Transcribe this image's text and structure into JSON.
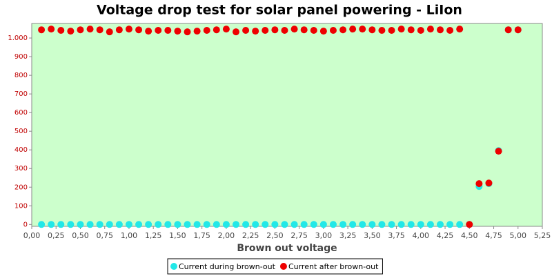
{
  "chart_data": {
    "type": "scatter",
    "title": "Voltage drop test for solar panel powering -  LiIon",
    "x_label": "Brown out voltage",
    "x": [
      0.1,
      0.2,
      0.3,
      0.4,
      0.5,
      0.6,
      0.7,
      0.8,
      0.9,
      1.0,
      1.1,
      1.2,
      1.3,
      1.4,
      1.5,
      1.6,
      1.7,
      1.8,
      1.9,
      2.0,
      2.1,
      2.2,
      2.3,
      2.4,
      2.5,
      2.6,
      2.7,
      2.8,
      2.9,
      3.0,
      3.1,
      3.2,
      3.3,
      3.4,
      3.5,
      3.6,
      3.7,
      3.8,
      3.9,
      4.0,
      4.1,
      4.2,
      4.3,
      4.4,
      4.5,
      4.6,
      4.7,
      4.8,
      4.9,
      5.0
    ],
    "series": [
      {
        "name": "Current during brown-out",
        "color": "#22e8e8",
        "values": [
          0,
          0,
          0,
          0,
          0,
          0,
          0,
          0,
          0,
          0,
          0,
          0,
          0,
          0,
          0,
          0,
          0,
          0,
          0,
          0,
          0,
          0,
          0,
          0,
          0,
          0,
          0,
          0,
          0,
          0,
          0,
          0,
          0,
          0,
          0,
          0,
          0,
          0,
          0,
          0,
          0,
          0,
          0,
          0,
          0,
          204,
          219,
          396,
          1044,
          1044
        ]
      },
      {
        "name": "Current after brown-out",
        "color": "#ee0000",
        "values": [
          1044,
          1048,
          1041,
          1037,
          1044,
          1048,
          1044,
          1033,
          1044,
          1048,
          1044,
          1037,
          1041,
          1041,
          1037,
          1033,
          1037,
          1041,
          1044,
          1048,
          1033,
          1041,
          1037,
          1041,
          1044,
          1041,
          1048,
          1044,
          1041,
          1037,
          1041,
          1044,
          1048,
          1048,
          1044,
          1041,
          1041,
          1048,
          1044,
          1041,
          1048,
          1044,
          1041,
          1048,
          0,
          219,
          222,
          393,
          1044,
          1044
        ]
      }
    ],
    "xlim": [
      0,
      5.25
    ],
    "xticks": [
      {
        "value": 0,
        "label": "0,00"
      },
      {
        "value": 0.25,
        "label": "0,25"
      },
      {
        "value": 0.5,
        "label": "0,50"
      },
      {
        "value": 0.75,
        "label": "0,75"
      },
      {
        "value": 1,
        "label": "1,00"
      },
      {
        "value": 1.25,
        "label": "1,25"
      },
      {
        "value": 1.5,
        "label": "1,50"
      },
      {
        "value": 1.75,
        "label": "1,75"
      },
      {
        "value": 2,
        "label": "2,00"
      },
      {
        "value": 2.25,
        "label": "2,25"
      },
      {
        "value": 2.5,
        "label": "2,50"
      },
      {
        "value": 2.75,
        "label": "2,75"
      },
      {
        "value": 3,
        "label": "3,00"
      },
      {
        "value": 3.25,
        "label": "3,25"
      },
      {
        "value": 3.5,
        "label": "3,50"
      },
      {
        "value": 3.75,
        "label": "3,75"
      },
      {
        "value": 4,
        "label": "4,00"
      },
      {
        "value": 4.25,
        "label": "4,25"
      },
      {
        "value": 4.5,
        "label": "4,50"
      },
      {
        "value": 4.75,
        "label": "4,75"
      },
      {
        "value": 5,
        "label": "5,00"
      },
      {
        "value": 5.25,
        "label": "5,25"
      }
    ],
    "ylim": [
      -10,
      1078
    ],
    "yticks": [
      0,
      100,
      200,
      300,
      400,
      500,
      600,
      700,
      800,
      900,
      {
        "value": 1000,
        "label": "1.000"
      }
    ],
    "background": "#ccffcc"
  }
}
